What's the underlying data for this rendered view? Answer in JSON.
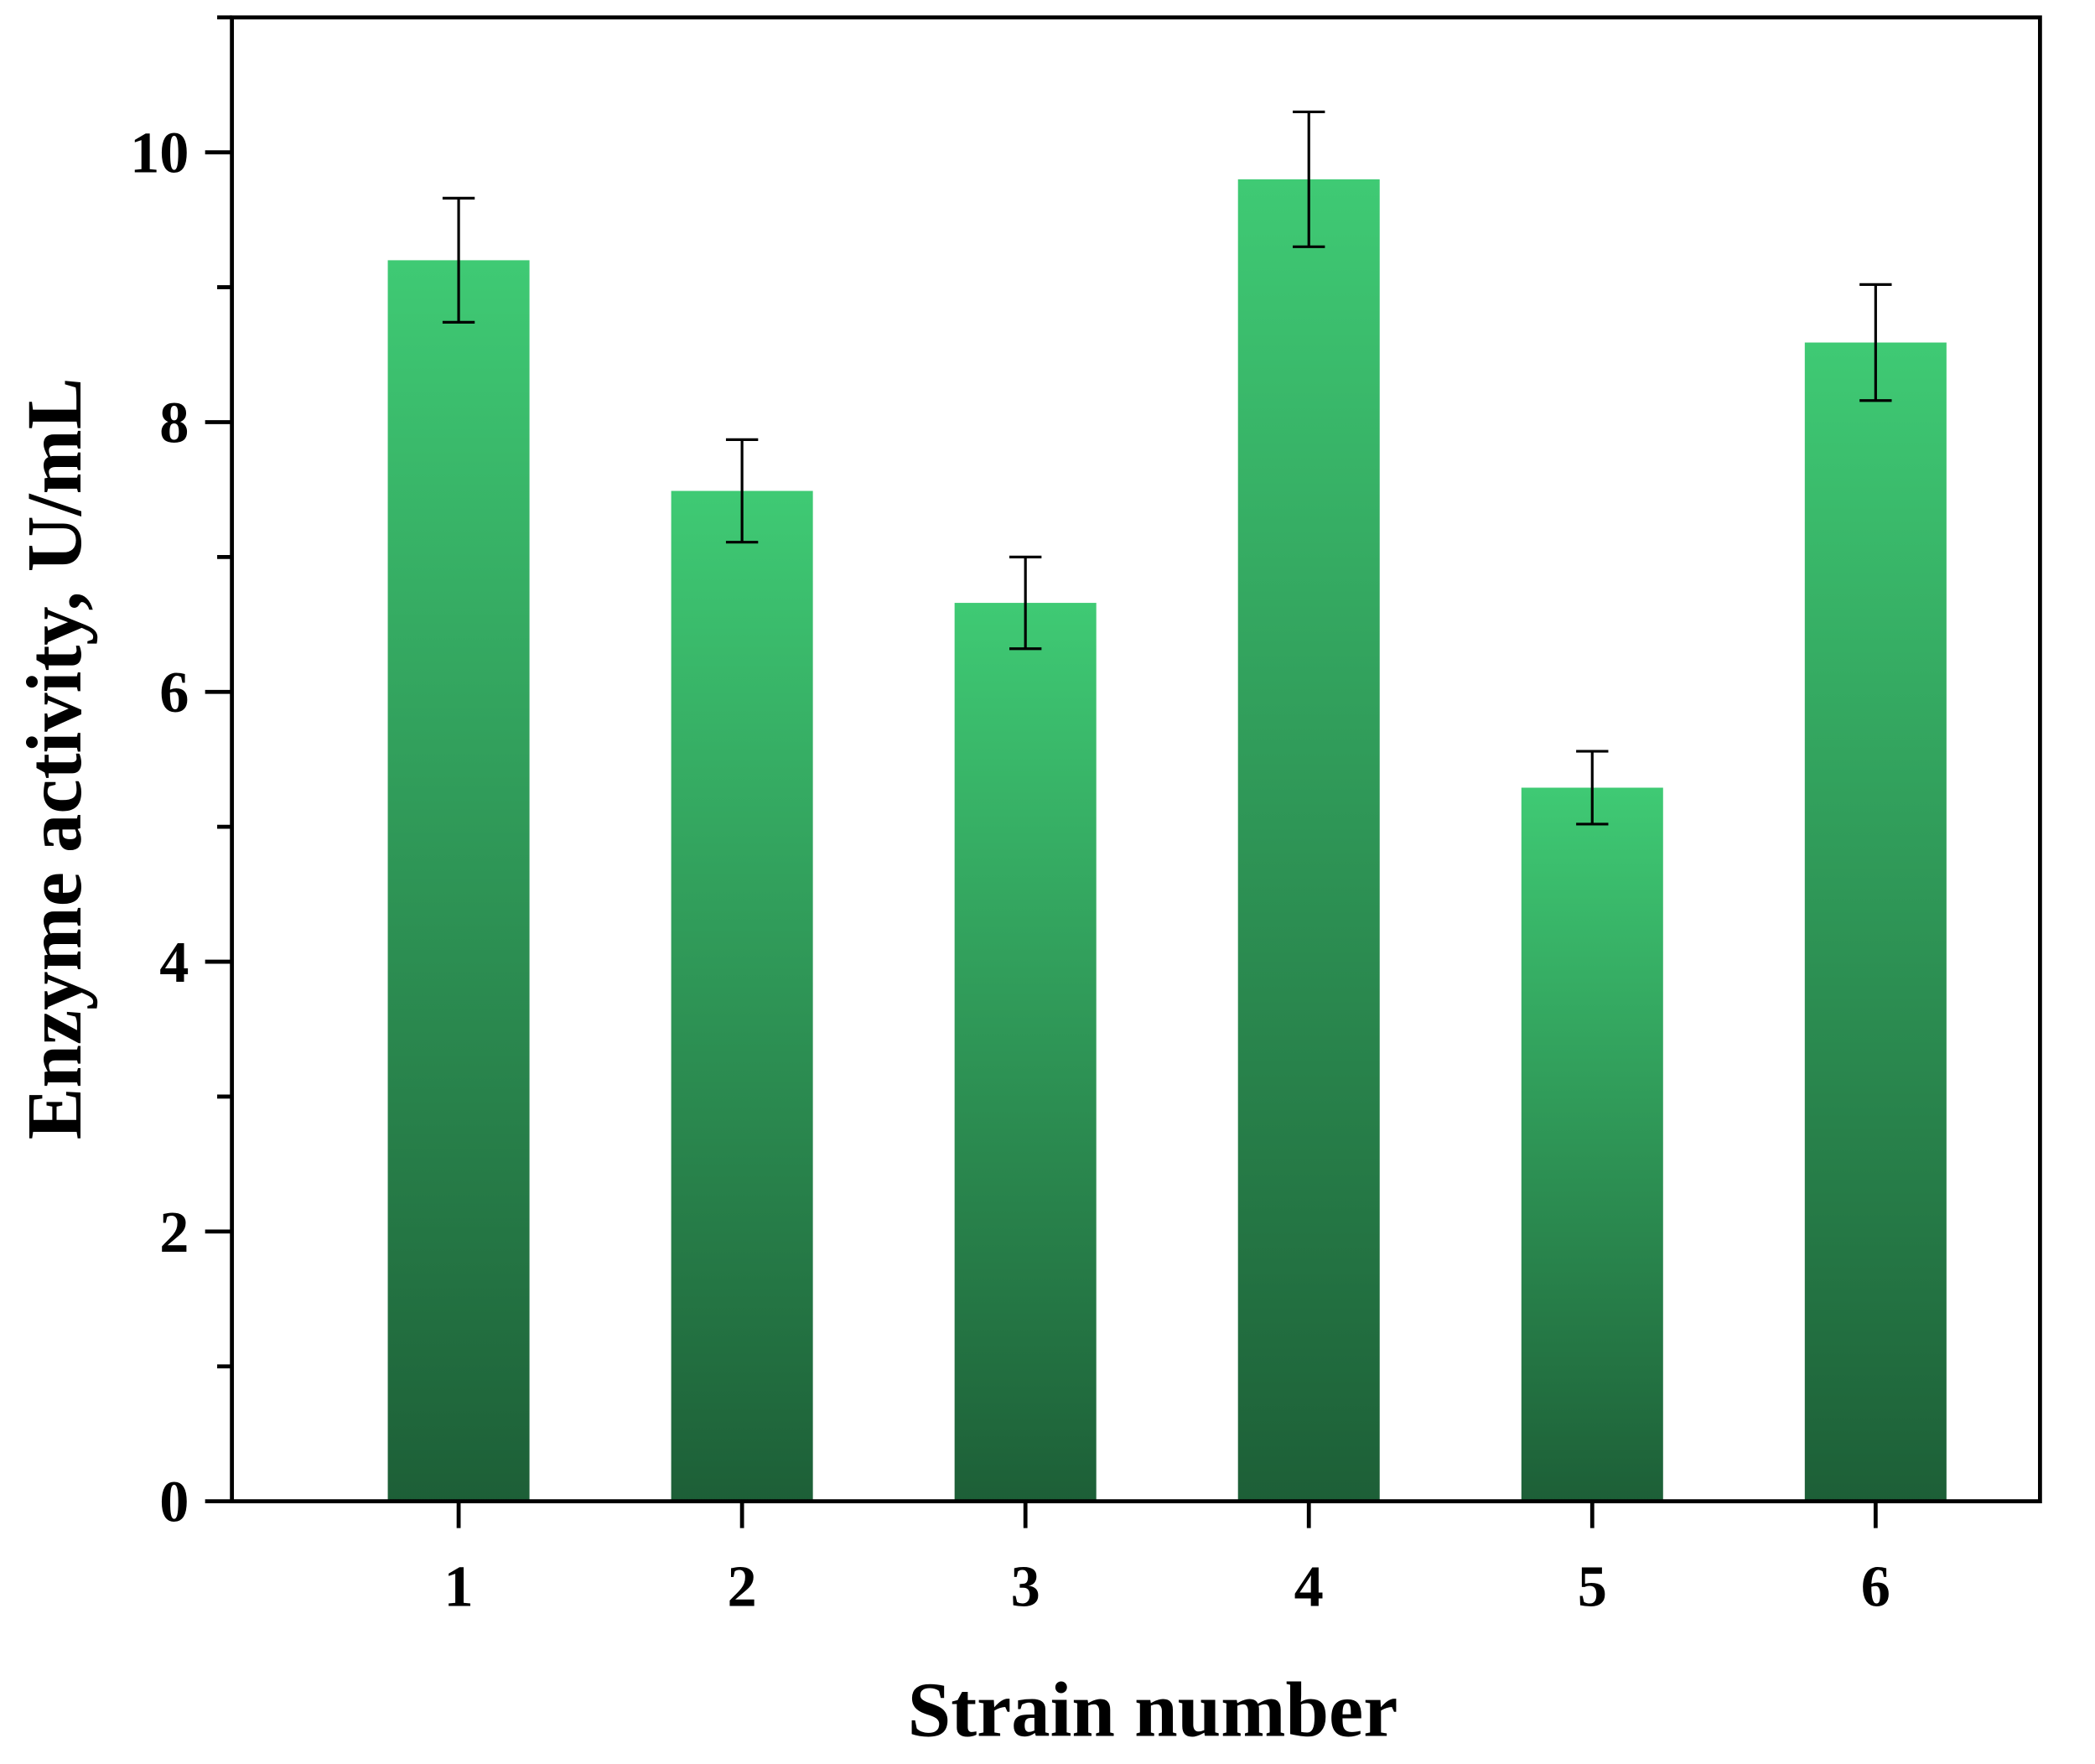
{
  "chart_data": {
    "type": "bar",
    "title": "",
    "xlabel": "Strain number",
    "ylabel": "Enzyme activity, U/mL",
    "categories": [
      "1",
      "2",
      "3",
      "4",
      "5",
      "6"
    ],
    "values": [
      9.2,
      7.49,
      6.66,
      9.8,
      5.29,
      8.59
    ],
    "errors": [
      0.46,
      0.38,
      0.34,
      0.5,
      0.27,
      0.43
    ],
    "ylim": [
      0,
      11
    ],
    "xlim": [
      0.2,
      6.58
    ],
    "yticks": [
      "0",
      "2",
      "4",
      "6",
      "8",
      "10"
    ],
    "grid": false,
    "colors": {
      "bar_top": "#3fca74",
      "bar_bottom": "#1d5f37",
      "axis": "#000000"
    }
  }
}
